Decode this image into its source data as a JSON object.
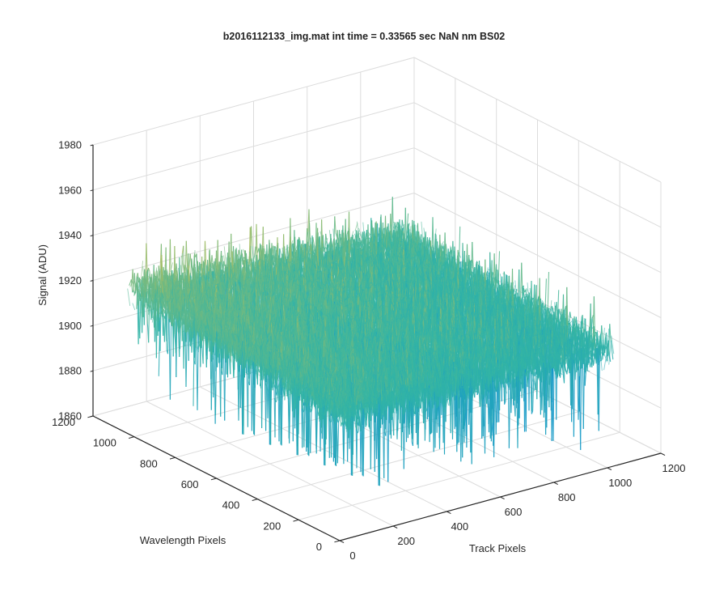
{
  "chart_data": {
    "type": "surface",
    "title": "b2016112133_img.mat int time = 0.33565 sec  NaN nm BS02",
    "xlabel": "Track Pixels",
    "ylabel": "Wavelength Pixels",
    "zlabel": "Signal (ADU)",
    "xlim": [
      0,
      1200
    ],
    "ylim": [
      0,
      1200
    ],
    "zlim": [
      1860,
      1980
    ],
    "x_ticks": [
      "0",
      "200",
      "400",
      "600",
      "800",
      "1000",
      "1200"
    ],
    "y_ticks": [
      "0",
      "200",
      "400",
      "600",
      "800",
      "1000",
      "1200"
    ],
    "z_ticks": [
      "1860",
      "1880",
      "1900",
      "1920",
      "1940",
      "1960",
      "1980"
    ],
    "grid": true,
    "colormap": "parula",
    "surface_extent": {
      "x": [
        0,
        1024
      ],
      "y": [
        0,
        1024
      ]
    },
    "surface_level_approx": {
      "mean": 1915,
      "min": 1868,
      "max": 1962
    },
    "colors": {
      "low": "#0b8fd6",
      "mid": "#33b5a5",
      "high": "#efc33a",
      "axis": "#262626",
      "grid": "#dcdcdc"
    }
  }
}
